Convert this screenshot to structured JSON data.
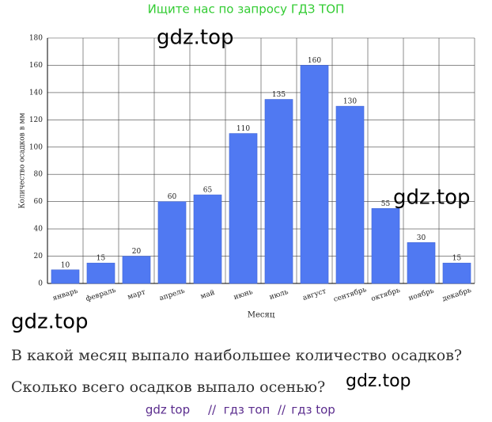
{
  "banner": "Ищите нас по запросу ГДЗ ТОП",
  "watermarks": [
    "gdz.top",
    "gdz.top",
    "gdz.top",
    "gdz.top"
  ],
  "chart_data": {
    "type": "bar",
    "categories": [
      "январь",
      "февраль",
      "март",
      "апрель",
      "май",
      "июнь",
      "июль",
      "август",
      "сентябрь",
      "октябрь",
      "ноябрь",
      "декабрь"
    ],
    "values": [
      10,
      15,
      20,
      60,
      65,
      110,
      135,
      160,
      130,
      55,
      30,
      15
    ],
    "color": "#5079f2",
    "ylim": [
      0,
      180
    ],
    "yticks": [
      0,
      20,
      40,
      60,
      80,
      100,
      120,
      140,
      160,
      180
    ],
    "y_label": "Количество осадков в мм",
    "x_label": "Месяц",
    "grid": true
  },
  "questions": [
    "В какой месяц выпало наибольшее количество осадков?",
    "Сколько всего осадков выпало осенью?"
  ],
  "footer": [
    "gdz top",
    "//",
    "гдз топ",
    "//",
    "гдз top"
  ]
}
